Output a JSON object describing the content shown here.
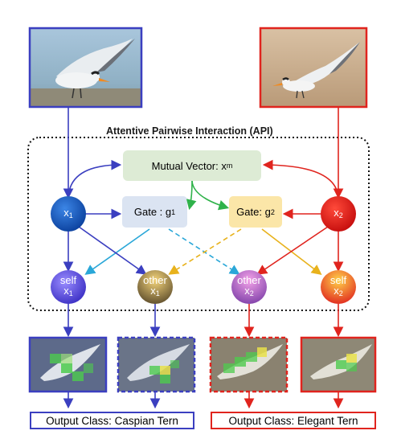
{
  "diagram": {
    "title": "Attentive Pairwise Interaction (API)",
    "mutual": {
      "text": "Mutual Vector: x",
      "sub": "m"
    },
    "gate1": {
      "text": "Gate : g",
      "sub": "1"
    },
    "gate2": {
      "text": "Gate: g",
      "sub": "2"
    },
    "x1": {
      "text": "x",
      "sub": "1"
    },
    "x2": {
      "text": "x",
      "sub": "2"
    },
    "self1": {
      "top": "self",
      "text": "x",
      "sub": "1"
    },
    "other1": {
      "top": "other",
      "text": "x",
      "sub": "1"
    },
    "other2": {
      "top": "other",
      "text": "x",
      "sub": "2"
    },
    "self2": {
      "top": "self",
      "text": "x",
      "sub": "2"
    },
    "output_left": "Output Class: Caspian Tern",
    "output_right": "Output Class: Elegant Tern"
  },
  "colors": {
    "blue": "#3b3fc0",
    "red": "#e0241e",
    "green": "#2fb24a",
    "cyan": "#2aa7d8",
    "yellow": "#e8b21c"
  }
}
